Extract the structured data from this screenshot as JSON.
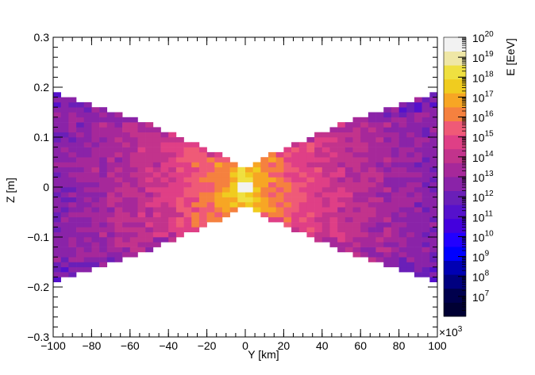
{
  "chart_data": {
    "type": "heatmap",
    "title": "",
    "xlabel": "Y [km]",
    "ylabel": "Z [m]",
    "zlabel": "E [EeV]",
    "x_multiplier_label": "×10",
    "x_multiplier_exp": "3",
    "xlim": [
      -100,
      100
    ],
    "ylim": [
      -0.3,
      0.3
    ],
    "x_ticks": [
      {
        "value": -100,
        "label": "−100"
      },
      {
        "value": -80,
        "label": "−80"
      },
      {
        "value": -60,
        "label": "−60"
      },
      {
        "value": -40,
        "label": "−40"
      },
      {
        "value": -20,
        "label": "−20"
      },
      {
        "value": 0,
        "label": "0"
      },
      {
        "value": 20,
        "label": "20"
      },
      {
        "value": 40,
        "label": "40"
      },
      {
        "value": 60,
        "label": "60"
      },
      {
        "value": 80,
        "label": "80"
      },
      {
        "value": 100,
        "label": "100"
      }
    ],
    "y_ticks": [
      {
        "value": -0.3,
        "label": "−0.3"
      },
      {
        "value": -0.2,
        "label": "−0.2"
      },
      {
        "value": -0.1,
        "label": "−0.1"
      },
      {
        "value": 0,
        "label": "0"
      },
      {
        "value": 0.1,
        "label": "0.1"
      },
      {
        "value": 0.2,
        "label": "0.2"
      },
      {
        "value": 0.3,
        "label": "0.3"
      }
    ],
    "z_log_range": [
      6,
      20
    ],
    "z_ticks": [
      {
        "exp": 7,
        "label": "10",
        "sup": "7"
      },
      {
        "exp": 8,
        "label": "10",
        "sup": "8"
      },
      {
        "exp": 9,
        "label": "10",
        "sup": "9"
      },
      {
        "exp": 10,
        "label": "10",
        "sup": "10"
      },
      {
        "exp": 11,
        "label": "10",
        "sup": "11"
      },
      {
        "exp": 12,
        "label": "10",
        "sup": "12"
      },
      {
        "exp": 13,
        "label": "10",
        "sup": "13"
      },
      {
        "exp": 14,
        "label": "10",
        "sup": "14"
      },
      {
        "exp": 15,
        "label": "10",
        "sup": "15"
      },
      {
        "exp": 16,
        "label": "10",
        "sup": "16"
      },
      {
        "exp": 17,
        "label": "10",
        "sup": "17"
      },
      {
        "exp": 18,
        "label": "10",
        "sup": "18"
      },
      {
        "exp": 19,
        "label": "10",
        "sup": "19"
      },
      {
        "exp": 20,
        "label": "10",
        "sup": "20"
      }
    ],
    "palette": [
      "#000033",
      "#00004d",
      "#000080",
      "#0000b3",
      "#0000ff",
      "#2200ff",
      "#4400dd",
      "#5511cc",
      "#6a1fb8",
      "#8a23a8",
      "#a6289a",
      "#c2338c",
      "#df3f86",
      "#ef5a77",
      "#f5813f",
      "#f7a624",
      "#f0cc1f",
      "#efe040",
      "#efe7a6",
      "#f2f2f2"
    ],
    "region": {
      "half_width_at_edge": 0.19,
      "edge_x": 100,
      "waist_half_width": 0.03,
      "bin_width_x": 4,
      "bin_height_y": 0.01,
      "log_energy_center": 20,
      "log_energy_edge": 12.5
    }
  }
}
